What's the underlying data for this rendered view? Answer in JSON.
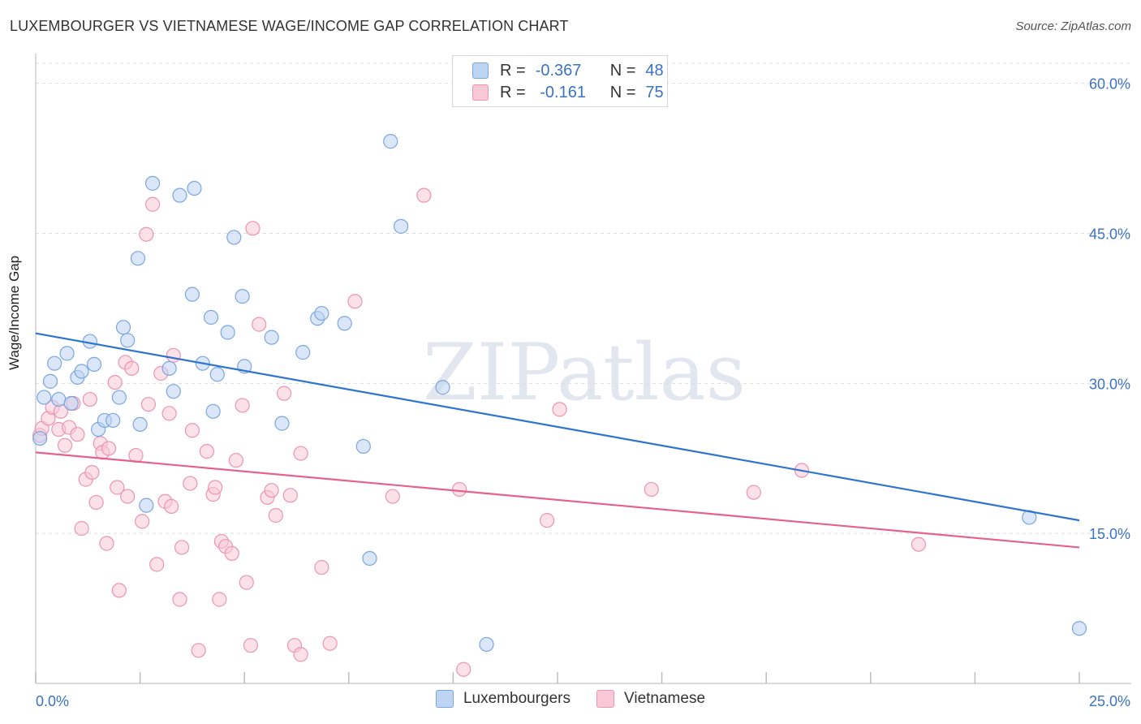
{
  "title": "LUXEMBOURGER VS VIETNAMESE WAGE/INCOME GAP CORRELATION CHART",
  "source": "Source: ZipAtlas.com",
  "watermark": "ZIPatlas",
  "legend_stats": [
    {
      "r_label": "R = ",
      "r_value": "-0.367",
      "n_label": "N = ",
      "n_value": "48"
    },
    {
      "r_label": "R = ",
      "r_value": " -0.161",
      "n_label": "N = ",
      "n_value": "75"
    }
  ],
  "bottom_legend": [
    "Luxembourgers",
    "Vietnamese"
  ],
  "colors": {
    "blue_fill": "#bdd4f3",
    "blue_stroke": "#7aa6e0",
    "blue_line": "#2e74cf",
    "pink_fill": "#f9c8d7",
    "pink_stroke": "#ec94b0",
    "pink_line": "#e4628e",
    "axis_text": "#3a72c4"
  },
  "chart_data": {
    "type": "scatter",
    "title": "LUXEMBOURGER VS VIETNAMESE WAGE/INCOME GAP CORRELATION CHART",
    "xlabel": "",
    "ylabel": "Wage/Income Gap",
    "xlim": [
      0,
      25
    ],
    "ylim": [
      0,
      62
    ],
    "x_tick_labels": [
      "0.0%",
      "25.0%"
    ],
    "y_ticks": [
      15,
      30,
      45,
      60
    ],
    "y_tick_labels": [
      "15.0%",
      "30.0%",
      "45.0%",
      "60.0%"
    ],
    "grid": true,
    "series": [
      {
        "name": "Luxembourgers",
        "trendline": {
          "x": [
            0,
            25
          ],
          "y": [
            35.0,
            16.3
          ]
        },
        "points": [
          [
            0.1,
            24.5
          ],
          [
            0.2,
            28.6
          ],
          [
            0.35,
            30.2
          ],
          [
            0.45,
            32.0
          ],
          [
            0.55,
            28.4
          ],
          [
            0.75,
            33.0
          ],
          [
            0.85,
            28.0
          ],
          [
            1.0,
            30.6
          ],
          [
            1.1,
            31.2
          ],
          [
            1.3,
            34.2
          ],
          [
            1.4,
            31.9
          ],
          [
            1.5,
            25.4
          ],
          [
            1.65,
            26.3
          ],
          [
            1.85,
            26.3
          ],
          [
            2.0,
            28.6
          ],
          [
            2.1,
            35.6
          ],
          [
            2.2,
            34.3
          ],
          [
            2.45,
            42.5
          ],
          [
            2.5,
            25.9
          ],
          [
            2.65,
            17.8
          ],
          [
            2.8,
            50.0
          ],
          [
            3.2,
            31.5
          ],
          [
            3.3,
            29.2
          ],
          [
            3.45,
            48.8
          ],
          [
            3.8,
            49.5
          ],
          [
            3.75,
            38.9
          ],
          [
            4.0,
            32.0
          ],
          [
            4.2,
            36.6
          ],
          [
            4.25,
            27.2
          ],
          [
            4.35,
            30.9
          ],
          [
            4.6,
            35.1
          ],
          [
            4.75,
            44.6
          ],
          [
            4.95,
            38.7
          ],
          [
            5.0,
            31.7
          ],
          [
            5.65,
            34.6
          ],
          [
            5.9,
            26.0
          ],
          [
            6.4,
            33.1
          ],
          [
            6.75,
            36.5
          ],
          [
            6.85,
            37.0
          ],
          [
            7.4,
            36.0
          ],
          [
            7.85,
            23.7
          ],
          [
            8.0,
            12.5
          ],
          [
            8.5,
            54.2
          ],
          [
            8.75,
            45.7
          ],
          [
            9.75,
            29.6
          ],
          [
            10.8,
            3.9
          ],
          [
            23.8,
            16.6
          ],
          [
            25.0,
            5.5
          ]
        ]
      },
      {
        "name": "Vietnamese",
        "trendline": {
          "x": [
            0,
            25
          ],
          "y": [
            23.1,
            13.6
          ]
        },
        "points": [
          [
            0.1,
            24.8
          ],
          [
            0.15,
            25.5
          ],
          [
            0.3,
            26.5
          ],
          [
            0.4,
            27.6
          ],
          [
            0.55,
            25.4
          ],
          [
            0.6,
            27.2
          ],
          [
            0.7,
            23.8
          ],
          [
            0.8,
            25.6
          ],
          [
            0.9,
            28.0
          ],
          [
            1.0,
            24.9
          ],
          [
            1.1,
            15.5
          ],
          [
            1.2,
            20.4
          ],
          [
            1.3,
            28.4
          ],
          [
            1.35,
            21.1
          ],
          [
            1.45,
            18.1
          ],
          [
            1.55,
            24.0
          ],
          [
            1.6,
            23.1
          ],
          [
            1.7,
            14.0
          ],
          [
            1.75,
            23.5
          ],
          [
            1.9,
            30.1
          ],
          [
            1.95,
            19.6
          ],
          [
            2.0,
            9.3
          ],
          [
            2.15,
            32.1
          ],
          [
            2.2,
            18.7
          ],
          [
            2.3,
            31.5
          ],
          [
            2.4,
            22.8
          ],
          [
            2.55,
            16.2
          ],
          [
            2.65,
            44.9
          ],
          [
            2.7,
            27.9
          ],
          [
            2.8,
            47.9
          ],
          [
            2.9,
            11.9
          ],
          [
            3.0,
            31.0
          ],
          [
            3.1,
            18.2
          ],
          [
            3.2,
            27.0
          ],
          [
            3.25,
            17.7
          ],
          [
            3.3,
            32.8
          ],
          [
            3.45,
            8.4
          ],
          [
            3.5,
            13.6
          ],
          [
            3.7,
            20.0
          ],
          [
            3.75,
            25.3
          ],
          [
            3.9,
            3.3
          ],
          [
            4.1,
            23.2
          ],
          [
            4.25,
            18.9
          ],
          [
            4.3,
            19.6
          ],
          [
            4.4,
            8.4
          ],
          [
            4.45,
            14.2
          ],
          [
            4.55,
            13.7
          ],
          [
            4.7,
            13.0
          ],
          [
            4.8,
            22.3
          ],
          [
            4.95,
            27.8
          ],
          [
            5.05,
            10.1
          ],
          [
            5.15,
            3.8
          ],
          [
            5.2,
            45.5
          ],
          [
            5.35,
            35.9
          ],
          [
            5.55,
            18.6
          ],
          [
            5.65,
            19.3
          ],
          [
            5.75,
            16.8
          ],
          [
            5.95,
            29.0
          ],
          [
            6.1,
            18.8
          ],
          [
            6.2,
            3.8
          ],
          [
            6.35,
            23.0
          ],
          [
            6.35,
            2.9
          ],
          [
            6.85,
            11.6
          ],
          [
            7.05,
            4.0
          ],
          [
            7.65,
            38.2
          ],
          [
            8.55,
            18.7
          ],
          [
            9.3,
            48.8
          ],
          [
            10.15,
            19.4
          ],
          [
            10.25,
            1.4
          ],
          [
            12.25,
            16.3
          ],
          [
            12.55,
            27.4
          ],
          [
            14.75,
            19.4
          ],
          [
            17.2,
            19.1
          ],
          [
            18.35,
            21.3
          ],
          [
            21.15,
            13.9
          ]
        ]
      }
    ]
  }
}
